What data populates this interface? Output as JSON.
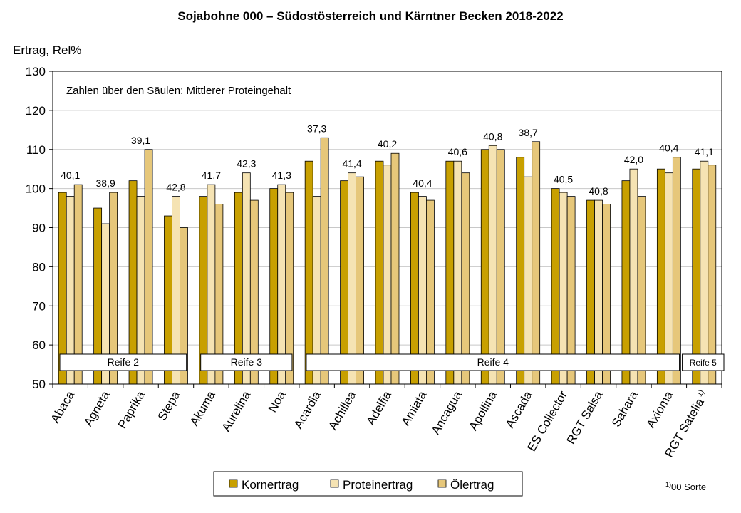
{
  "chart_data": {
    "type": "bar",
    "title": "Sojabohne 000 – Südostösterreich und Kärntner Becken 2018-2022",
    "ylabel": "Ertrag, Rel%",
    "xlabel": "",
    "ylim": [
      50,
      130
    ],
    "yticks": [
      50,
      60,
      70,
      80,
      90,
      100,
      110,
      120,
      130
    ],
    "grid": true,
    "annotation": "Zahlen über den Säulen: Mittlerer Proteingehalt",
    "categories": [
      "Abaca",
      "Agneta",
      "Paprika",
      "Stepa",
      "Akuma",
      "Aurelina",
      "Noa",
      "Acardia",
      "Achillea",
      "Adelfia",
      "Amiata",
      "Ancagua",
      "Apollina",
      "Ascada",
      "ES Collector",
      "RGT Salsa",
      "Sahara",
      "Axioma",
      "RGT Satelia"
    ],
    "category_superscripts": [
      "",
      "",
      "",
      "",
      "",
      "",
      "",
      "",
      "",
      "",
      "",
      "",
      "",
      "",
      "",
      "",
      "",
      "",
      "1)"
    ],
    "series": [
      {
        "name": "Kornertrag",
        "color": "#c8a000",
        "values": [
          99,
          95,
          102,
          93,
          98,
          99,
          100,
          107,
          102,
          107,
          99,
          107,
          110,
          108,
          100,
          97,
          102,
          105,
          105
        ]
      },
      {
        "name": "Proteinertrag",
        "color": "#f5e3b3",
        "values": [
          98,
          91,
          98,
          98,
          101,
          104,
          101,
          98,
          104,
          106,
          98,
          107,
          111,
          103,
          99,
          97,
          105,
          104,
          107
        ]
      },
      {
        "name": "Ölertrag",
        "color": "#e6c77a",
        "values": [
          101,
          99,
          110,
          90,
          96,
          97,
          99,
          113,
          103,
          109,
          97,
          104,
          110,
          112,
          98,
          96,
          98,
          108,
          106
        ]
      }
    ],
    "data_labels": [
      "40,1",
      "38,9",
      "39,1",
      "42,8",
      "41,7",
      "42,3",
      "41,3",
      "37,3",
      "41,4",
      "40,2",
      "40,4",
      "40,6",
      "40,8",
      "38,7",
      "40,5",
      "40,8",
      "42,0",
      "40,4",
      "41,1"
    ],
    "groups": [
      {
        "label": "Reife 2",
        "first": 0,
        "last": 3
      },
      {
        "label": "Reife 3",
        "first": 4,
        "last": 6
      },
      {
        "label": "Reife 4",
        "first": 7,
        "last": 17
      },
      {
        "label": "Reife 5",
        "first": 18,
        "last": 18
      }
    ],
    "legend": {
      "position": "bottom"
    },
    "footnote": "1)00 Sorte"
  }
}
